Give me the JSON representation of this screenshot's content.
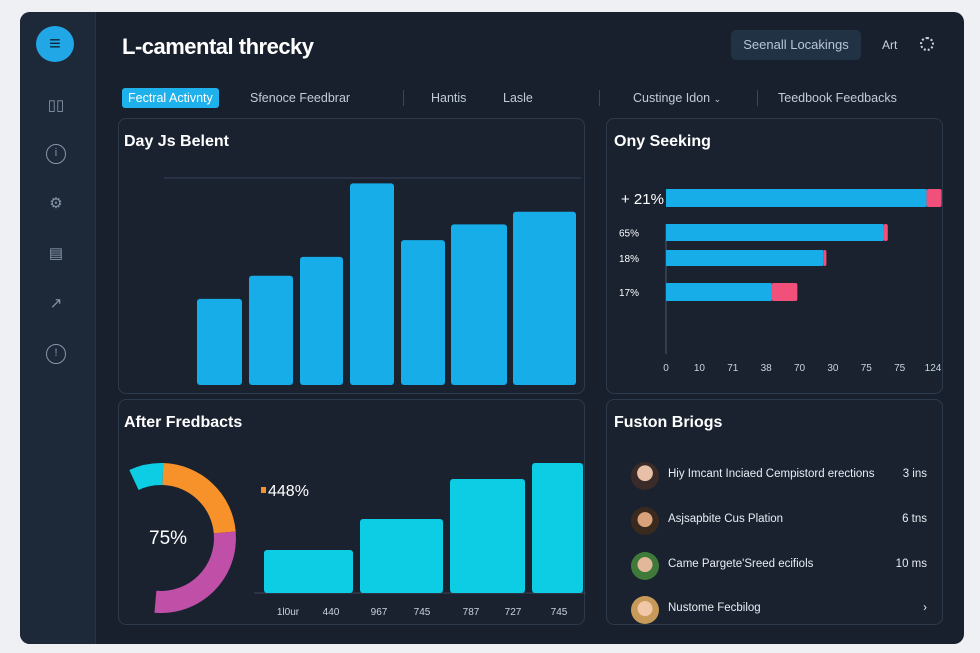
{
  "app": {
    "title": "L-camental threcky",
    "header_button": "Seenall Locakings",
    "header_link": "Art"
  },
  "sidebar": {
    "icons": [
      "logo-chat-icon",
      "book-icon",
      "info-icon",
      "settings-icon",
      "document-icon",
      "chart-icon",
      "alert-icon"
    ]
  },
  "tabs": [
    {
      "label": "Fectral Activnty",
      "active": true
    },
    {
      "label": "Sfenoce Feedbrar"
    },
    {
      "label": "Hantis"
    },
    {
      "label": "Lasle"
    },
    {
      "label": "Custinge Idon",
      "dropdown": true
    },
    {
      "label": "Teedbook Feedbacks"
    }
  ],
  "colors": {
    "accent": "#1fb1ec",
    "bar_blue": "#16ade9",
    "bar_pink": "#f0507a",
    "bar_cyan": "#0ccde3",
    "donut_orange": "#f7922b",
    "donut_magenta": "#c04fa8"
  },
  "chart_data": [
    {
      "type": "bar",
      "title": "Day Js Belent",
      "values": [
        82,
        104,
        122,
        192,
        138,
        153,
        165
      ],
      "ylim": [
        0,
        200
      ]
    },
    {
      "type": "bar",
      "orientation": "horizontal",
      "stacked": true,
      "title": "Ony Seeking",
      "categories": [
        "+ 21%",
        "65%",
        "18%",
        "17%"
      ],
      "series": [
        {
          "values": [
            121,
            101,
            73,
            49
          ]
        },
        {
          "values": [
            7,
            2,
            1.5,
            12
          ]
        }
      ],
      "xticks": [
        "0",
        "10",
        "71",
        "38",
        "70",
        "30",
        "75",
        "75",
        "124"
      ],
      "xlim": [
        0,
        124
      ]
    },
    {
      "type": "pie",
      "title": "After Fredbacts",
      "center_label": "75%",
      "values": [
        8,
        25,
        30
      ]
    },
    {
      "type": "bar",
      "annotation": "448%",
      "values": [
        43,
        74,
        114,
        130
      ],
      "xticks": [
        "1l0ur",
        "440",
        "967",
        "745",
        "787",
        "727",
        "745"
      ],
      "ylim": [
        0,
        140
      ]
    }
  ],
  "feed": {
    "title": "Fuston Briogs",
    "items": [
      {
        "text": "Hiy Imcant Inciaed Cempistord erections",
        "time": "3 ins"
      },
      {
        "text": "Asjsapbite Cus Plation",
        "time": "6 tns"
      },
      {
        "text": "Came Pargete'Sreed ecifiols",
        "time": "10 ms"
      },
      {
        "text": "Nustome Fecbilog",
        "time": "›"
      }
    ]
  }
}
